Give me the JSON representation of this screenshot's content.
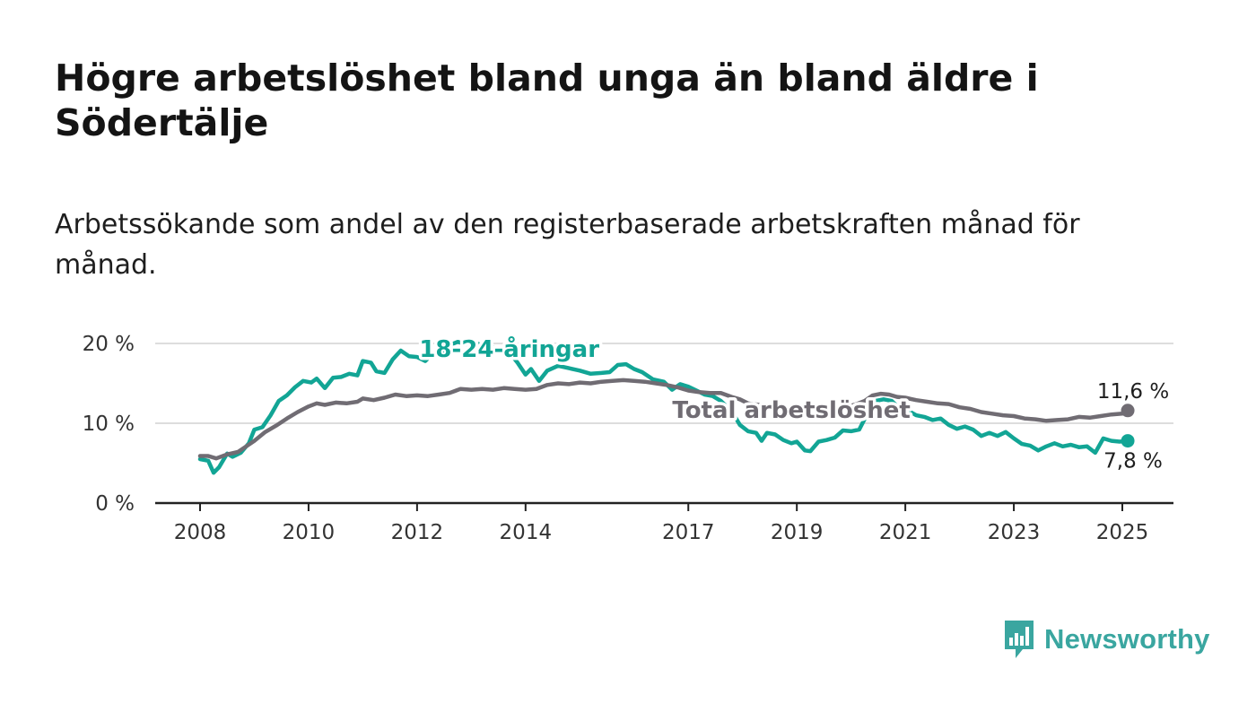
{
  "title": "Högre arbetslöshet bland unga än bland äldre i Södertälje",
  "subtitle": "Arbetssökande som andel av den registerbaserade arbetskraften månad för månad.",
  "logo": {
    "text": "Newsworthy",
    "icon": "newsworthy-bar-chart-icon"
  },
  "colors": {
    "youth": "#12a595",
    "total": "#706c73",
    "axis": "#222222",
    "grid": "#dddddd"
  },
  "chart_data": {
    "type": "line",
    "xlim": [
      2008,
      2025.4
    ],
    "ylim": [
      0,
      20
    ],
    "yticks": [
      0,
      10,
      20
    ],
    "ytick_labels": [
      "0 %",
      "10 %",
      "20 %"
    ],
    "xticks": [
      2008,
      2010,
      2012,
      2014,
      2017,
      2019,
      2021,
      2023,
      2025
    ],
    "xtick_labels": [
      "2008",
      "2010",
      "2012",
      "2014",
      "2017",
      "2019",
      "2021",
      "2023",
      "2025"
    ],
    "grid": true,
    "series": [
      {
        "name": "18-24-åringar",
        "color": "#12a595",
        "end_label": "7,8 %",
        "points": [
          [
            2008.0,
            5.5
          ],
          [
            2008.15,
            5.3
          ],
          [
            2008.25,
            3.8
          ],
          [
            2008.35,
            4.5
          ],
          [
            2008.5,
            6.2
          ],
          [
            2008.6,
            5.8
          ],
          [
            2008.75,
            6.3
          ],
          [
            2008.9,
            7.5
          ],
          [
            2009.0,
            9.2
          ],
          [
            2009.15,
            9.5
          ],
          [
            2009.3,
            11.0
          ],
          [
            2009.45,
            12.8
          ],
          [
            2009.6,
            13.5
          ],
          [
            2009.75,
            14.5
          ],
          [
            2009.9,
            15.3
          ],
          [
            2010.05,
            15.1
          ],
          [
            2010.15,
            15.6
          ],
          [
            2010.3,
            14.4
          ],
          [
            2010.45,
            15.7
          ],
          [
            2010.6,
            15.8
          ],
          [
            2010.75,
            16.2
          ],
          [
            2010.9,
            16.0
          ],
          [
            2011.0,
            17.8
          ],
          [
            2011.15,
            17.6
          ],
          [
            2011.25,
            16.5
          ],
          [
            2011.4,
            16.3
          ],
          [
            2011.55,
            18.0
          ],
          [
            2011.7,
            19.1
          ],
          [
            2011.85,
            18.4
          ],
          [
            2012.0,
            18.3
          ],
          [
            2012.15,
            17.8
          ],
          [
            2012.3,
            18.8
          ],
          [
            2012.45,
            18.6
          ],
          [
            2012.6,
            19.8
          ],
          [
            2012.75,
            20.2
          ],
          [
            2012.9,
            19.9
          ],
          [
            2013.1,
            20.0
          ],
          [
            2013.3,
            19.5
          ],
          [
            2013.5,
            19.4
          ],
          [
            2013.7,
            18.9
          ],
          [
            2013.85,
            17.6
          ],
          [
            2014.0,
            16.1
          ],
          [
            2014.1,
            16.8
          ],
          [
            2014.25,
            15.3
          ],
          [
            2014.4,
            16.6
          ],
          [
            2014.6,
            17.2
          ],
          [
            2014.8,
            16.9
          ],
          [
            2015.0,
            16.6
          ],
          [
            2015.2,
            16.2
          ],
          [
            2015.4,
            16.3
          ],
          [
            2015.55,
            16.4
          ],
          [
            2015.7,
            17.3
          ],
          [
            2015.85,
            17.4
          ],
          [
            2016.0,
            16.8
          ],
          [
            2016.15,
            16.4
          ],
          [
            2016.35,
            15.5
          ],
          [
            2016.55,
            15.2
          ],
          [
            2016.7,
            14.2
          ],
          [
            2016.85,
            14.9
          ],
          [
            2017.0,
            14.6
          ],
          [
            2017.15,
            14.1
          ],
          [
            2017.3,
            13.6
          ],
          [
            2017.45,
            13.4
          ],
          [
            2017.6,
            12.8
          ],
          [
            2017.8,
            11.5
          ],
          [
            2017.95,
            9.8
          ],
          [
            2018.1,
            9.0
          ],
          [
            2018.25,
            8.8
          ],
          [
            2018.35,
            7.8
          ],
          [
            2018.45,
            8.8
          ],
          [
            2018.6,
            8.6
          ],
          [
            2018.75,
            7.9
          ],
          [
            2018.9,
            7.5
          ],
          [
            2019.0,
            7.7
          ],
          [
            2019.15,
            6.6
          ],
          [
            2019.25,
            6.5
          ],
          [
            2019.4,
            7.7
          ],
          [
            2019.55,
            7.9
          ],
          [
            2019.7,
            8.2
          ],
          [
            2019.85,
            9.1
          ],
          [
            2020.0,
            9.0
          ],
          [
            2020.15,
            9.2
          ],
          [
            2020.3,
            11.2
          ],
          [
            2020.45,
            12.8
          ],
          [
            2020.6,
            13.0
          ],
          [
            2020.75,
            12.8
          ],
          [
            2020.9,
            11.8
          ],
          [
            2021.05,
            11.6
          ],
          [
            2021.2,
            11.0
          ],
          [
            2021.35,
            10.8
          ],
          [
            2021.5,
            10.4
          ],
          [
            2021.65,
            10.6
          ],
          [
            2021.8,
            9.8
          ],
          [
            2021.95,
            9.3
          ],
          [
            2022.1,
            9.6
          ],
          [
            2022.25,
            9.2
          ],
          [
            2022.4,
            8.4
          ],
          [
            2022.55,
            8.8
          ],
          [
            2022.7,
            8.4
          ],
          [
            2022.85,
            8.9
          ],
          [
            2023.0,
            8.1
          ],
          [
            2023.15,
            7.4
          ],
          [
            2023.3,
            7.2
          ],
          [
            2023.45,
            6.6
          ],
          [
            2023.6,
            7.1
          ],
          [
            2023.75,
            7.5
          ],
          [
            2023.9,
            7.1
          ],
          [
            2024.05,
            7.3
          ],
          [
            2024.2,
            7.0
          ],
          [
            2024.35,
            7.1
          ],
          [
            2024.5,
            6.3
          ],
          [
            2024.65,
            8.1
          ],
          [
            2024.8,
            7.8
          ],
          [
            2024.95,
            7.7
          ],
          [
            2025.1,
            7.8
          ]
        ]
      },
      {
        "name": "Total arbetslöshet",
        "color": "#706c73",
        "end_label": "11,6 %",
        "points": [
          [
            2008.0,
            5.9
          ],
          [
            2008.15,
            5.9
          ],
          [
            2008.3,
            5.6
          ],
          [
            2008.5,
            6.1
          ],
          [
            2008.7,
            6.4
          ],
          [
            2008.85,
            7.1
          ],
          [
            2009.0,
            7.8
          ],
          [
            2009.2,
            8.9
          ],
          [
            2009.4,
            9.7
          ],
          [
            2009.6,
            10.6
          ],
          [
            2009.8,
            11.4
          ],
          [
            2010.0,
            12.1
          ],
          [
            2010.15,
            12.5
          ],
          [
            2010.3,
            12.3
          ],
          [
            2010.5,
            12.6
          ],
          [
            2010.7,
            12.5
          ],
          [
            2010.9,
            12.7
          ],
          [
            2011.0,
            13.1
          ],
          [
            2011.2,
            12.9
          ],
          [
            2011.4,
            13.2
          ],
          [
            2011.6,
            13.6
          ],
          [
            2011.8,
            13.4
          ],
          [
            2012.0,
            13.5
          ],
          [
            2012.2,
            13.4
          ],
          [
            2012.4,
            13.6
          ],
          [
            2012.6,
            13.8
          ],
          [
            2012.8,
            14.3
          ],
          [
            2013.0,
            14.2
          ],
          [
            2013.2,
            14.3
          ],
          [
            2013.4,
            14.2
          ],
          [
            2013.6,
            14.4
          ],
          [
            2013.8,
            14.3
          ],
          [
            2014.0,
            14.2
          ],
          [
            2014.2,
            14.3
          ],
          [
            2014.4,
            14.8
          ],
          [
            2014.6,
            15.0
          ],
          [
            2014.8,
            14.9
          ],
          [
            2015.0,
            15.1
          ],
          [
            2015.2,
            15.0
          ],
          [
            2015.4,
            15.2
          ],
          [
            2015.6,
            15.3
          ],
          [
            2015.8,
            15.4
          ],
          [
            2016.0,
            15.3
          ],
          [
            2016.2,
            15.2
          ],
          [
            2016.4,
            15.0
          ],
          [
            2016.6,
            14.8
          ],
          [
            2016.8,
            14.5
          ],
          [
            2017.0,
            14.1
          ],
          [
            2017.2,
            13.9
          ],
          [
            2017.4,
            13.8
          ],
          [
            2017.6,
            13.8
          ],
          [
            2017.8,
            13.3
          ],
          [
            2017.95,
            13.0
          ],
          [
            2018.1,
            12.5
          ],
          [
            2018.3,
            12.3
          ],
          [
            2018.5,
            12.1
          ],
          [
            2018.7,
            11.9
          ],
          [
            2018.9,
            11.7
          ],
          [
            2019.1,
            11.8
          ],
          [
            2019.3,
            11.9
          ],
          [
            2019.5,
            11.8
          ],
          [
            2019.7,
            11.6
          ],
          [
            2019.9,
            12.0
          ],
          [
            2020.1,
            12.4
          ],
          [
            2020.25,
            12.8
          ],
          [
            2020.4,
            13.5
          ],
          [
            2020.55,
            13.7
          ],
          [
            2020.7,
            13.6
          ],
          [
            2020.85,
            13.3
          ],
          [
            2021.0,
            13.2
          ],
          [
            2021.2,
            12.9
          ],
          [
            2021.4,
            12.7
          ],
          [
            2021.6,
            12.5
          ],
          [
            2021.8,
            12.4
          ],
          [
            2022.0,
            12.0
          ],
          [
            2022.2,
            11.8
          ],
          [
            2022.4,
            11.4
          ],
          [
            2022.6,
            11.2
          ],
          [
            2022.8,
            11.0
          ],
          [
            2023.0,
            10.9
          ],
          [
            2023.2,
            10.6
          ],
          [
            2023.4,
            10.5
          ],
          [
            2023.6,
            10.3
          ],
          [
            2023.8,
            10.4
          ],
          [
            2024.0,
            10.5
          ],
          [
            2024.2,
            10.8
          ],
          [
            2024.4,
            10.7
          ],
          [
            2024.6,
            10.9
          ],
          [
            2024.8,
            11.1
          ],
          [
            2025.0,
            11.2
          ],
          [
            2025.1,
            11.6
          ]
        ]
      }
    ],
    "annotations": [
      {
        "text": "18-24-åringar",
        "series": 0,
        "x": 2013.7,
        "y": 18.3
      },
      {
        "text": "Total arbetslöshet",
        "series": 1,
        "x": 2018.9,
        "y": 10.7
      }
    ]
  }
}
